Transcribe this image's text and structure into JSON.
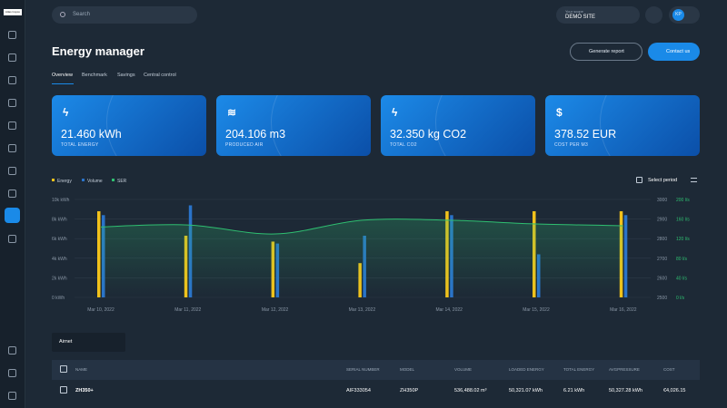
{
  "sidebar": {
    "logo": "Atlas Copco"
  },
  "header": {
    "search": "Search",
    "scope_label": "Your scope",
    "scope": "DEMO SITE",
    "user": "KP"
  },
  "page": {
    "title": "Energy manager",
    "actions": [
      "Generate report",
      "Contact us"
    ],
    "tabs": [
      "Overview",
      "Benchmark",
      "Savings",
      "Central control"
    ]
  },
  "cards": [
    {
      "value": "21.460 kWh",
      "label": "TOTAL ENERGY"
    },
    {
      "value": "204.106 m3",
      "label": "PRODUCED AIR"
    },
    {
      "value": "32.350 kg CO2",
      "label": "TOTAL CO2"
    },
    {
      "value": "378.52 EUR",
      "label": "COST PER M3"
    }
  ],
  "chart_controls": {
    "period": "Select period"
  },
  "chart_data": {
    "type": "bar",
    "categories": [
      "Mar 10, 2022",
      "Mar 11, 2022",
      "Mar 12, 2022",
      "Mar 13, 2022",
      "Mar 14, 2022",
      "Mar 15, 2022",
      "Mar 16, 2022"
    ],
    "series": [
      {
        "name": "Energy",
        "color": "#f2c21b",
        "values": [
          8800,
          6300,
          5700,
          3500,
          8800,
          8800,
          8800
        ]
      },
      {
        "name": "Volume",
        "color": "#2a73c9",
        "values": [
          8400,
          9400,
          5500,
          6300,
          8400,
          4400,
          8400
        ]
      },
      {
        "name": "SER",
        "color": "#2fbf71",
        "type": "line",
        "axis": "y2",
        "values": [
          2860,
          2870,
          2824,
          2894,
          2894,
          2875,
          2866
        ]
      }
    ],
    "ylim": [
      0,
      10000
    ],
    "yticks": [
      {
        "value": 0,
        "label": "0 kWh"
      },
      {
        "value": 2000,
        "label": "2k kWh"
      },
      {
        "value": 4000,
        "label": "4k kWh"
      },
      {
        "value": 6000,
        "label": "6k kWh"
      },
      {
        "value": 8000,
        "label": "8k kWh"
      },
      {
        "value": 10000,
        "label": "10k kWh"
      }
    ],
    "y2lim": [
      2500,
      3000
    ],
    "y2ticks": [
      2500,
      2600,
      2700,
      2800,
      2900,
      3000
    ],
    "y3lim": [
      0,
      200
    ],
    "y3ticks": [
      {
        "value": 0,
        "label": "0 l/s"
      },
      {
        "value": 40,
        "label": "40 l/s"
      },
      {
        "value": 80,
        "label": "80 l/s"
      },
      {
        "value": 120,
        "label": "120 l/s"
      },
      {
        "value": 160,
        "label": "160 l/s"
      },
      {
        "value": 200,
        "label": "200 l/s"
      }
    ],
    "grid": true
  },
  "table": {
    "filter": "Airnet",
    "columns": [
      "NAME",
      "SERIAL NUMBER",
      "MODEL",
      "VOLUME",
      "LOADED ENERGY",
      "TOTAL ENERGY",
      "AVGPRESSURE",
      "COST"
    ],
    "rows": [
      [
        "ZH350+",
        "AIF333054",
        "ZH350P",
        "536,488.02 m³",
        "50,321.07 kWh",
        "6.21 kWh",
        "50,327.28 kWh",
        "€4,026.15"
      ]
    ]
  }
}
